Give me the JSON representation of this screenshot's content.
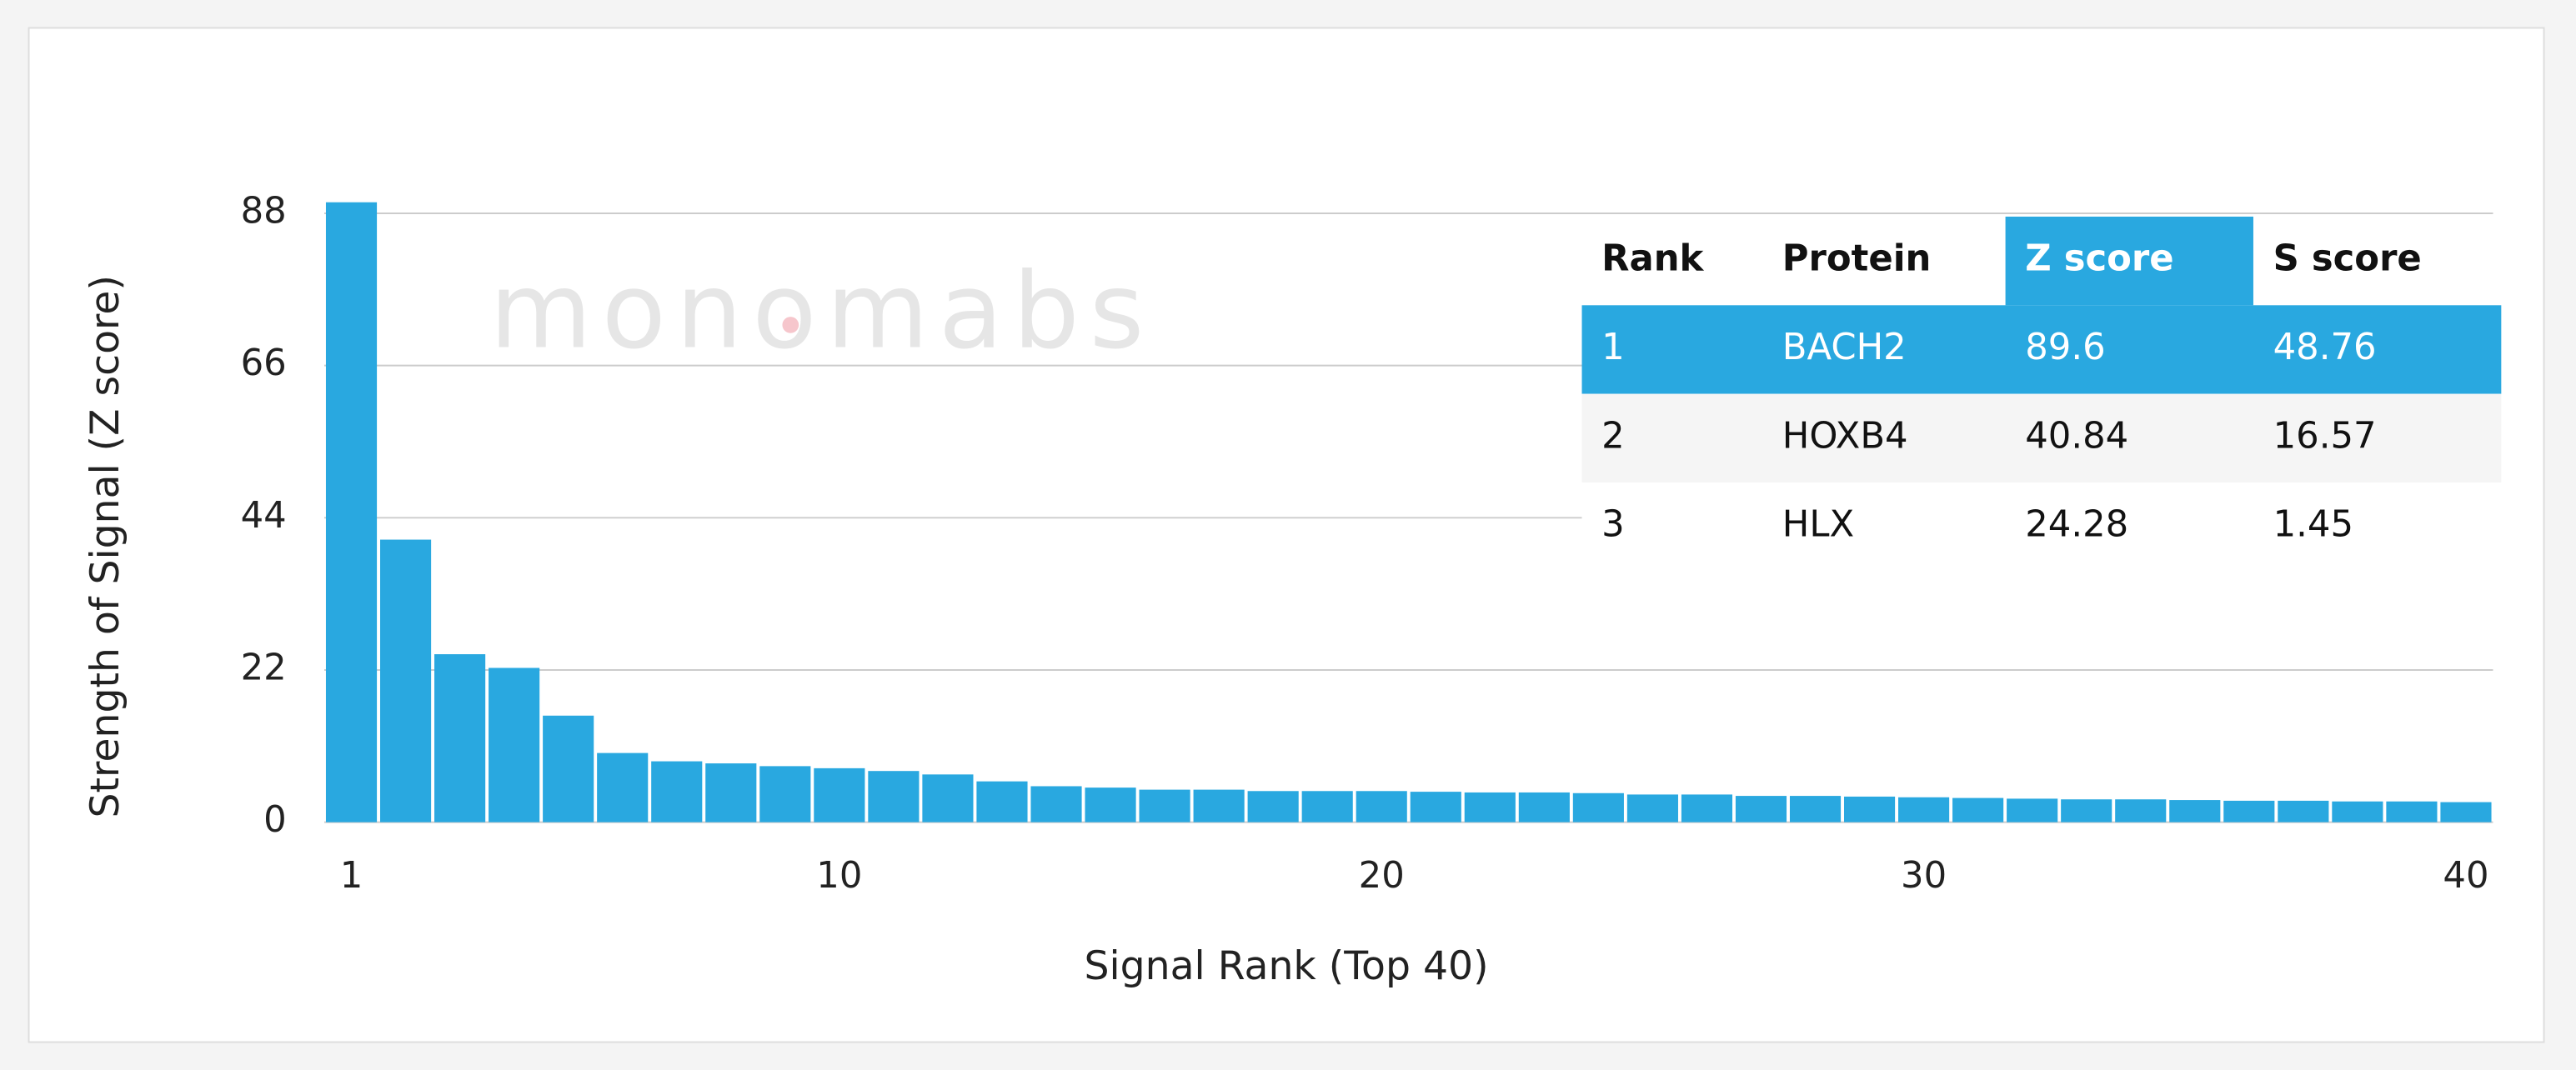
{
  "chart_data": {
    "type": "bar",
    "x": [
      1,
      2,
      3,
      4,
      5,
      6,
      7,
      8,
      9,
      10,
      11,
      12,
      13,
      14,
      15,
      16,
      17,
      18,
      19,
      20,
      21,
      22,
      23,
      24,
      25,
      26,
      27,
      28,
      29,
      30,
      31,
      32,
      33,
      34,
      35,
      36,
      37,
      38,
      39,
      40
    ],
    "values": [
      89.6,
      40.84,
      24.28,
      22.3,
      15.4,
      10.0,
      8.8,
      8.5,
      8.1,
      7.8,
      7.4,
      6.9,
      5.9,
      5.2,
      5.0,
      4.7,
      4.7,
      4.5,
      4.5,
      4.5,
      4.4,
      4.3,
      4.3,
      4.2,
      4.0,
      4.0,
      3.8,
      3.8,
      3.7,
      3.6,
      3.5,
      3.4,
      3.3,
      3.3,
      3.2,
      3.1,
      3.1,
      3.0,
      3.0,
      2.9
    ],
    "color": "#29a8e0",
    "xlim": [
      0.5,
      40.5
    ],
    "xticks": [
      1,
      10,
      20,
      30,
      40
    ],
    "ylim": [
      0,
      88
    ],
    "yticks": [
      0,
      22,
      44,
      66,
      88
    ],
    "grid": true,
    "xlabel": "Signal Rank (Top 40)",
    "ylabel": "Strength of Signal (Z score)"
  },
  "watermark": "monomabs",
  "table": {
    "columns": [
      "Rank",
      "Protein",
      "Z score",
      "S score"
    ],
    "rows": [
      [
        "1",
        "BACH2",
        "89.6",
        "48.76"
      ],
      [
        "2",
        "HOXB4",
        "40.84",
        "16.57"
      ],
      [
        "3",
        "HLX",
        "24.28",
        "1.45"
      ]
    ]
  }
}
